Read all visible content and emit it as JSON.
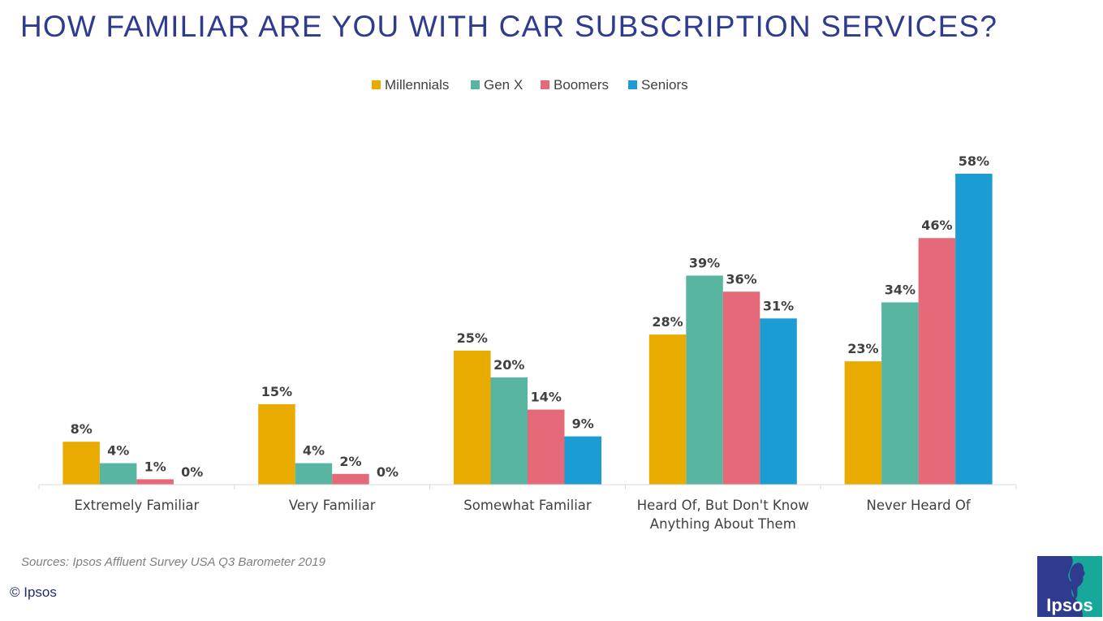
{
  "title": "HOW FAMILIAR ARE YOU WITH CAR SUBSCRIPTION SERVICES?",
  "source": "Sources: Ipsos Affluent Survey USA Q3 Barometer 2019",
  "copyright": "© Ipsos",
  "logo": {
    "text": "Ipsos",
    "icon": "ipsos-logo-icon"
  },
  "chart_data": {
    "type": "bar",
    "categories": [
      [
        "Extremely Familiar"
      ],
      [
        "Very Familiar"
      ],
      [
        "Somewhat Familiar"
      ],
      [
        "Heard Of, But Don't Know",
        "Anything About Them"
      ],
      [
        "Never Heard Of"
      ]
    ],
    "series": [
      {
        "name": "Millennials",
        "color": "#eaab00",
        "values": [
          8,
          15,
          25,
          28,
          23
        ],
        "labels": [
          "8%",
          "15%",
          "25%",
          "28%",
          "23%"
        ]
      },
      {
        "name": "Gen X",
        "color": "#58b5a0",
        "values": [
          4,
          4,
          20,
          39,
          34
        ],
        "labels": [
          "4%",
          "4%",
          "20%",
          "39%",
          "34%"
        ]
      },
      {
        "name": "Boomers",
        "color": "#e46a7a",
        "values": [
          1,
          2,
          14,
          36,
          46
        ],
        "labels": [
          "1%",
          "2%",
          "14%",
          "36%",
          "46%"
        ]
      },
      {
        "name": "Seniors",
        "color": "#1b9cd2",
        "values": [
          0,
          0,
          9,
          31,
          58
        ],
        "labels": [
          "0%",
          "0%",
          "9%",
          "31%",
          "58%"
        ]
      }
    ],
    "ylim": [
      0,
      58
    ],
    "legend_position": "top",
    "grid": false,
    "axis_color": "#d9d9d9",
    "label_color": "#404040"
  }
}
